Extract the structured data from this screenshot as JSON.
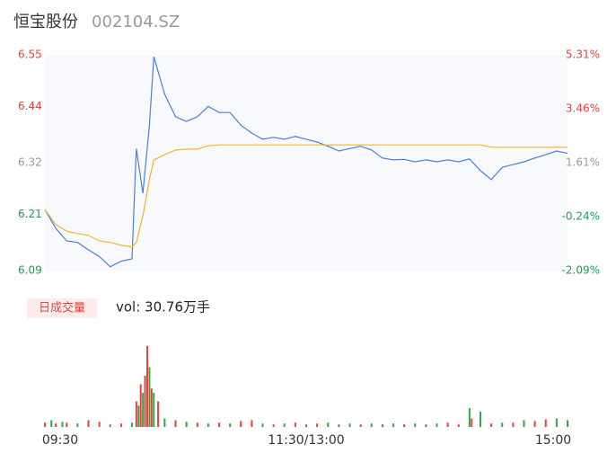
{
  "chart_data": [
    {
      "type": "line",
      "title": "恒宝股份",
      "subtitle": "002104.SZ",
      "x": [
        0,
        5,
        10,
        15,
        20,
        25,
        30,
        35,
        40,
        42,
        45,
        48,
        50,
        55,
        60,
        65,
        70,
        75,
        80,
        85,
        90,
        95,
        100,
        105,
        110,
        115,
        120,
        125,
        130,
        135,
        140,
        145,
        150,
        155,
        160,
        165,
        170,
        175,
        180,
        185,
        190,
        195,
        200,
        205,
        210,
        215,
        220,
        225,
        230,
        235,
        240
      ],
      "series": [
        {
          "name": "price",
          "color": "#4a7fe0",
          "values": [
            6.22,
            6.18,
            6.153,
            6.15,
            6.134,
            6.12,
            6.098,
            6.11,
            6.115,
            6.35,
            6.255,
            6.4,
            6.546,
            6.466,
            6.418,
            6.408,
            6.418,
            6.44,
            6.427,
            6.427,
            6.4,
            6.383,
            6.37,
            6.374,
            6.37,
            6.376,
            6.37,
            6.364,
            6.355,
            6.345,
            6.35,
            6.355,
            6.347,
            6.33,
            6.326,
            6.327,
            6.322,
            6.326,
            6.322,
            6.326,
            6.322,
            6.328,
            6.303,
            6.284,
            6.31,
            6.316,
            6.322,
            6.33,
            6.337,
            6.345,
            6.34
          ]
        },
        {
          "name": "average",
          "color": "#f5b32c",
          "values": [
            6.22,
            6.188,
            6.174,
            6.169,
            6.165,
            6.153,
            6.15,
            6.144,
            6.14,
            6.15,
            6.207,
            6.284,
            6.326,
            6.337,
            6.347,
            6.349,
            6.349,
            6.356,
            6.358,
            6.358,
            6.358,
            6.358,
            6.358,
            6.358,
            6.358,
            6.358,
            6.358,
            6.358,
            6.358,
            6.358,
            6.358,
            6.358,
            6.358,
            6.358,
            6.358,
            6.358,
            6.358,
            6.358,
            6.358,
            6.358,
            6.358,
            6.358,
            6.358,
            6.353,
            6.353,
            6.353,
            6.353,
            6.353,
            6.353,
            6.353,
            6.353
          ]
        }
      ],
      "xlim": [
        0,
        240
      ],
      "ylim": [
        6.09,
        6.55
      ],
      "yticks": [
        6.55,
        6.44,
        6.32,
        6.21,
        6.09
      ],
      "ytick_colors": [
        "#e8413e",
        "#e8413e",
        "#999999",
        "#1f9d55",
        "#1f9d55"
      ],
      "y2lim": [
        -2.09,
        5.31
      ],
      "y2ticks": [
        {
          "value": 5.31,
          "label": "5.31%"
        },
        {
          "value": 3.46,
          "label": "3.46%"
        },
        {
          "value": 1.61,
          "label": "1.61%"
        },
        {
          "value": -0.24,
          "label": "-0.24%"
        },
        {
          "value": -2.09,
          "label": "-2.09%"
        }
      ],
      "grid": false
    },
    {
      "type": "bar",
      "label": "日成交量",
      "annotation": "vol: 30.76万手",
      "x": [
        0,
        3,
        5,
        8,
        10,
        15,
        20,
        25,
        30,
        35,
        40,
        42,
        43,
        44,
        45,
        46,
        47,
        48,
        49,
        50,
        52,
        55,
        60,
        65,
        70,
        75,
        80,
        85,
        90,
        95,
        100,
        105,
        110,
        115,
        120,
        125,
        130,
        135,
        140,
        145,
        150,
        155,
        160,
        165,
        170,
        175,
        180,
        185,
        190,
        195,
        196,
        200,
        205,
        210,
        215,
        220,
        225,
        230,
        235,
        240
      ],
      "values": [
        5,
        8,
        4,
        6,
        5,
        4,
        8,
        6,
        3,
        4,
        5,
        30,
        25,
        50,
        40,
        60,
        95,
        70,
        45,
        40,
        30,
        10,
        8,
        6,
        5,
        4,
        5,
        4,
        7,
        8,
        4,
        3,
        4,
        5,
        3,
        4,
        5,
        3,
        4,
        3,
        4,
        3,
        4,
        3,
        4,
        3,
        4,
        5,
        3,
        22,
        10,
        18,
        4,
        5,
        5,
        8,
        7,
        9,
        10,
        8
      ],
      "colors": [
        "#e8413e",
        "#2ea84a",
        "#e8413e",
        "#2ea84a",
        "#e8413e",
        "#2ea84a",
        "#e8413e",
        "#e8413e",
        "#2ea84a",
        "#e8413e",
        "#2ea84a",
        "#e8413e",
        "#2ea84a",
        "#e8413e",
        "#2ea84a",
        "#e8413e",
        "#e8413e",
        "#2ea84a",
        "#e8413e",
        "#2ea84a",
        "#e8413e",
        "#2ea84a",
        "#e8413e",
        "#2ea84a",
        "#e8413e",
        "#2ea84a",
        "#e8413e",
        "#2ea84a",
        "#e8413e",
        "#e8413e",
        "#2ea84a",
        "#e8413e",
        "#2ea84a",
        "#e8413e",
        "#2ea84a",
        "#e8413e",
        "#2ea84a",
        "#e8413e",
        "#2ea84a",
        "#e8413e",
        "#2ea84a",
        "#e8413e",
        "#2ea84a",
        "#e8413e",
        "#2ea84a",
        "#e8413e",
        "#2ea84a",
        "#e8413e",
        "#e8413e",
        "#2ea84a",
        "#e8413e",
        "#2ea84a",
        "#e8413e",
        "#2ea84a",
        "#e8413e",
        "#2ea84a",
        "#e8413e",
        "#e8413e",
        "#2ea84a",
        "#2ea84a"
      ],
      "xlim": [
        0,
        240
      ],
      "ylim": [
        0,
        100
      ],
      "xticks": [
        {
          "value": 0,
          "label": "09:30"
        },
        {
          "value": 120,
          "label": "11:30/13:00"
        },
        {
          "value": 240,
          "label": "15:00"
        }
      ]
    }
  ]
}
